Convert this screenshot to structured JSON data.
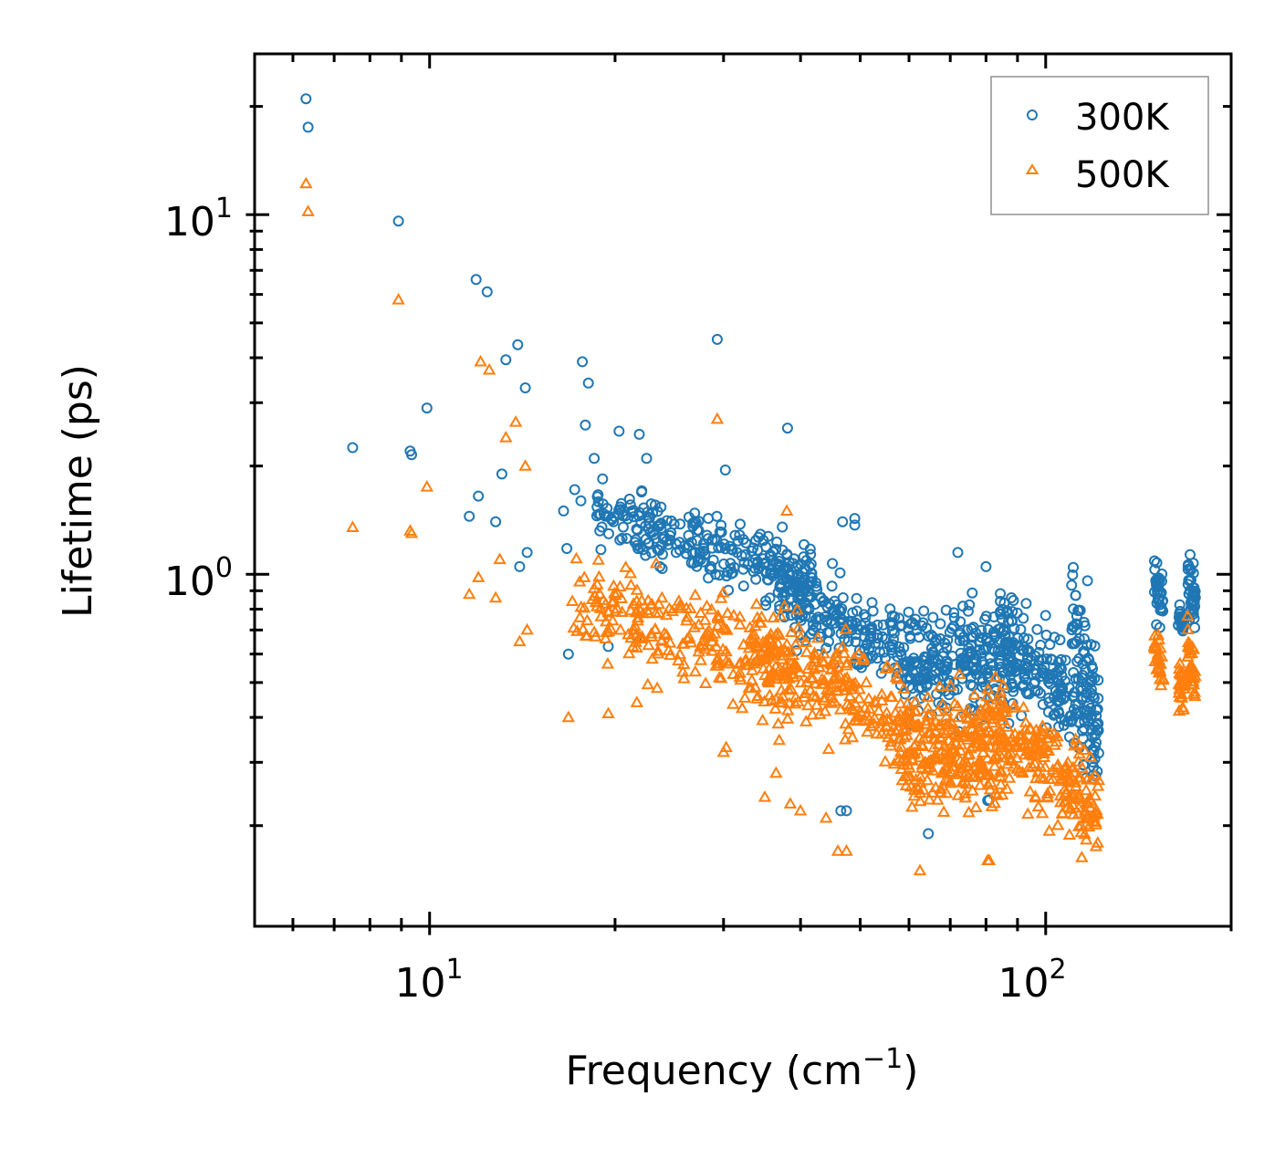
{
  "chart_data": {
    "type": "scatter",
    "xscale": "log",
    "yscale": "log",
    "xlabel": "Frequency (cm",
    "xlabel_sup": "−1",
    "xlabel_tail": ")",
    "ylabel": "Lifetime (ps)",
    "xlim": [
      5.2,
      200
    ],
    "ylim": [
      0.105,
      28
    ],
    "xticks": [
      {
        "base": "10",
        "exp": "1",
        "value": 10
      },
      {
        "base": "10",
        "exp": "2",
        "value": 100
      }
    ],
    "yticks": [
      {
        "base": "10",
        "exp": "0",
        "value": 1
      },
      {
        "base": "10",
        "exp": "1",
        "value": 10
      }
    ],
    "legend": {
      "position": "top-right",
      "entries": [
        "300K",
        "500K"
      ]
    },
    "series": [
      {
        "name": "300K",
        "color": "#1f77b4",
        "marker": "circle",
        "anchors": [
          [
            6.3,
            21.0
          ],
          [
            6.35,
            17.5
          ],
          [
            7.5,
            2.25
          ],
          [
            8.9,
            9.6
          ],
          [
            9.3,
            2.2
          ],
          [
            9.35,
            2.15
          ],
          [
            9.9,
            2.9
          ],
          [
            11.9,
            6.6
          ],
          [
            12.4,
            6.1
          ],
          [
            12.0,
            1.65
          ],
          [
            11.6,
            1.45
          ],
          [
            12.8,
            1.4
          ],
          [
            13.1,
            1.9
          ],
          [
            13.3,
            3.95
          ],
          [
            13.9,
            4.35
          ],
          [
            14.3,
            3.3
          ],
          [
            14.4,
            1.15
          ],
          [
            14.0,
            1.05
          ],
          [
            16.5,
            1.5
          ],
          [
            16.7,
            1.18
          ],
          [
            17.2,
            1.72
          ],
          [
            17.7,
            3.9
          ],
          [
            17.9,
            2.6
          ],
          [
            18.1,
            3.4
          ],
          [
            18.5,
            2.1
          ],
          [
            17.6,
            1.6
          ],
          [
            20.3,
            2.5
          ],
          [
            21.9,
            2.45
          ],
          [
            22.5,
            2.1
          ],
          [
            16.8,
            0.6
          ],
          [
            19.5,
            0.63
          ],
          [
            21.7,
            0.67
          ],
          [
            29.3,
            4.5
          ],
          [
            30.2,
            1.95
          ],
          [
            38.1,
            2.55
          ],
          [
            46.5,
            0.22
          ],
          [
            47.5,
            0.22
          ],
          [
            64.5,
            0.19
          ],
          [
            80.5,
            0.235
          ],
          [
            81.0,
            0.236
          ],
          [
            72,
            1.15
          ],
          [
            80,
            1.05
          ],
          [
            46.8,
            1.4
          ],
          [
            49,
            1.43
          ],
          [
            49,
            1.37
          ]
        ],
        "clusters": [
          {
            "x": [
              18.5,
              42
            ],
            "y_at_x0": 1.45,
            "y_at_x1": 1.0,
            "spread": 0.22,
            "n": 260
          },
          {
            "x": [
              35,
              60
            ],
            "y_at_x0": 0.95,
            "y_at_x1": 0.6,
            "spread": 0.25,
            "n": 220
          },
          {
            "x": [
              60,
              90
            ],
            "y_at_x0": 0.55,
            "y_at_x1": 0.62,
            "spread": 0.35,
            "n": 260
          },
          {
            "x": [
              84,
              122
            ],
            "y_at_x0": 0.7,
            "y_at_x1": 0.35,
            "spread": 0.3,
            "n": 200
          },
          {
            "x": [
              110,
              122
            ],
            "y_at_x0": 0.9,
            "y_at_x1": 0.38,
            "spread": 0.4,
            "n": 60
          },
          {
            "x": [
              150,
              155
            ],
            "y_at_x0": 0.95,
            "y_at_x1": 0.85,
            "spread": 0.18,
            "n": 35
          },
          {
            "x": [
              164,
              168
            ],
            "y_at_x0": 0.78,
            "y_at_x1": 0.7,
            "spread": 0.12,
            "n": 25
          },
          {
            "x": [
              170,
              175
            ],
            "y_at_x0": 0.95,
            "y_at_x1": 0.85,
            "spread": 0.18,
            "n": 40
          }
        ]
      },
      {
        "name": "500K",
        "color": "#ff7f0e",
        "marker": "triangle",
        "anchors": [
          [
            6.3,
            12.2
          ],
          [
            6.35,
            10.2
          ],
          [
            7.5,
            1.35
          ],
          [
            8.9,
            5.8
          ],
          [
            9.3,
            1.32
          ],
          [
            9.35,
            1.3
          ],
          [
            9.9,
            1.75
          ],
          [
            11.6,
            0.88
          ],
          [
            12.0,
            0.98
          ],
          [
            12.8,
            0.86
          ],
          [
            13.0,
            1.1
          ],
          [
            12.1,
            3.9
          ],
          [
            12.5,
            3.7
          ],
          [
            13.3,
            2.4
          ],
          [
            13.8,
            2.65
          ],
          [
            14.3,
            2.0
          ],
          [
            14.0,
            0.65
          ],
          [
            14.4,
            0.7
          ],
          [
            16.8,
            0.4
          ],
          [
            19.5,
            0.41
          ],
          [
            21.7,
            0.44
          ],
          [
            29.3,
            2.7
          ],
          [
            30.3,
            0.33
          ],
          [
            38.0,
            1.5
          ],
          [
            46.0,
            0.17
          ],
          [
            47.5,
            0.17
          ],
          [
            62.5,
            0.15
          ],
          [
            80.5,
            0.16
          ],
          [
            81,
            0.16
          ],
          [
            30.0,
            0.32
          ],
          [
            36.5,
            0.28
          ],
          [
            35,
            0.24
          ],
          [
            38.5,
            0.23
          ],
          [
            40,
            0.22
          ],
          [
            44,
            0.21
          ]
        ],
        "clusters": [
          {
            "x": [
              17,
              40
            ],
            "y_at_x0": 0.85,
            "y_at_x1": 0.55,
            "spread": 0.28,
            "n": 240
          },
          {
            "x": [
              33,
              60
            ],
            "y_at_x0": 0.58,
            "y_at_x1": 0.4,
            "spread": 0.3,
            "n": 240
          },
          {
            "x": [
              58,
              85
            ],
            "y_at_x0": 0.32,
            "y_at_x1": 0.33,
            "spread": 0.35,
            "n": 280
          },
          {
            "x": [
              80,
              122
            ],
            "y_at_x0": 0.4,
            "y_at_x1": 0.22,
            "spread": 0.3,
            "n": 220
          },
          {
            "x": [
              150,
              155
            ],
            "y_at_x0": 0.62,
            "y_at_x1": 0.55,
            "spread": 0.15,
            "n": 30
          },
          {
            "x": [
              164,
              168
            ],
            "y_at_x0": 0.5,
            "y_at_x1": 0.45,
            "spread": 0.12,
            "n": 25
          },
          {
            "x": [
              170,
              175
            ],
            "y_at_x0": 0.62,
            "y_at_x1": 0.5,
            "spread": 0.18,
            "n": 35
          }
        ]
      }
    ]
  }
}
